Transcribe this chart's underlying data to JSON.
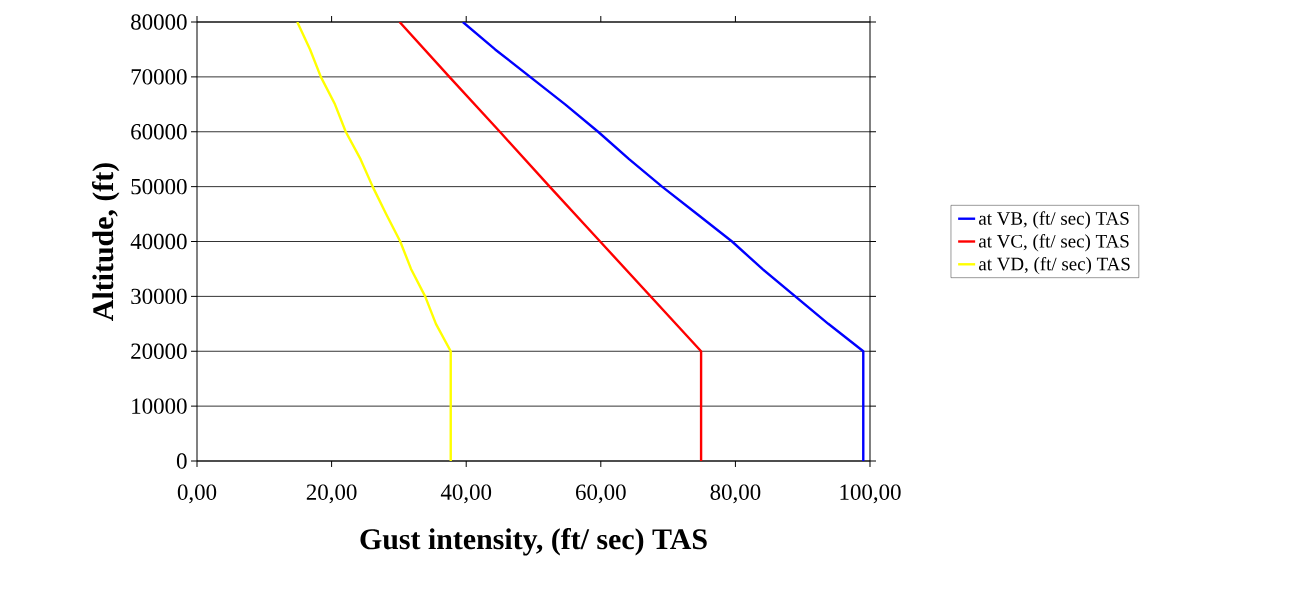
{
  "chart_data": {
    "type": "line",
    "xlabel": "Gust intensity, (ft/ sec) TAS",
    "ylabel": "Altitude, (ft)",
    "xlim": [
      0,
      100
    ],
    "ylim": [
      0,
      80000
    ],
    "xticks": [
      {
        "value": 0,
        "label": "0,00"
      },
      {
        "value": 20,
        "label": "20,00"
      },
      {
        "value": 40,
        "label": "40,00"
      },
      {
        "value": 60,
        "label": "60,00"
      },
      {
        "value": 80,
        "label": "80,00"
      },
      {
        "value": 100,
        "label": "100,00"
      }
    ],
    "yticks": [
      0,
      10000,
      20000,
      30000,
      40000,
      50000,
      60000,
      70000,
      80000
    ],
    "grid": "y",
    "legend": "right",
    "marker": "none",
    "line_style": "solid",
    "series": [
      {
        "name": "at VB, (ft/ sec) TAS",
        "color": "#0000ff",
        "x": [
          99.0,
          99.0,
          93.8,
          88.9,
          84.0,
          79.5,
          74.3,
          69.1,
          64.2,
          59.6,
          54.7,
          49.5,
          44.3,
          39.5
        ],
        "values": [
          0,
          20000,
          25000,
          30000,
          35000,
          40000,
          45000,
          50000,
          55000,
          60000,
          65000,
          70000,
          75000,
          80000
        ]
      },
      {
        "name": "at VC, (ft/ sec) TAS",
        "color": "#ff0000",
        "x": [
          74.9,
          74.9,
          67.4,
          59.9,
          52.4,
          45.0,
          37.5,
          30.1
        ],
        "values": [
          0,
          20000,
          30000,
          40000,
          50000,
          60000,
          70000,
          80000
        ]
      },
      {
        "name": "at VD, (ft/ sec) TAS",
        "color": "#ffff00",
        "x": [
          37.7,
          37.7,
          35.5,
          33.9,
          31.8,
          30.2,
          28.1,
          26.1,
          24.3,
          22.1,
          20.5,
          18.4,
          16.8,
          14.9
        ],
        "values": [
          0,
          20000,
          25000,
          30000,
          35000,
          40000,
          45000,
          50000,
          55000,
          60000,
          65000,
          70000,
          75000,
          80000
        ]
      }
    ]
  }
}
